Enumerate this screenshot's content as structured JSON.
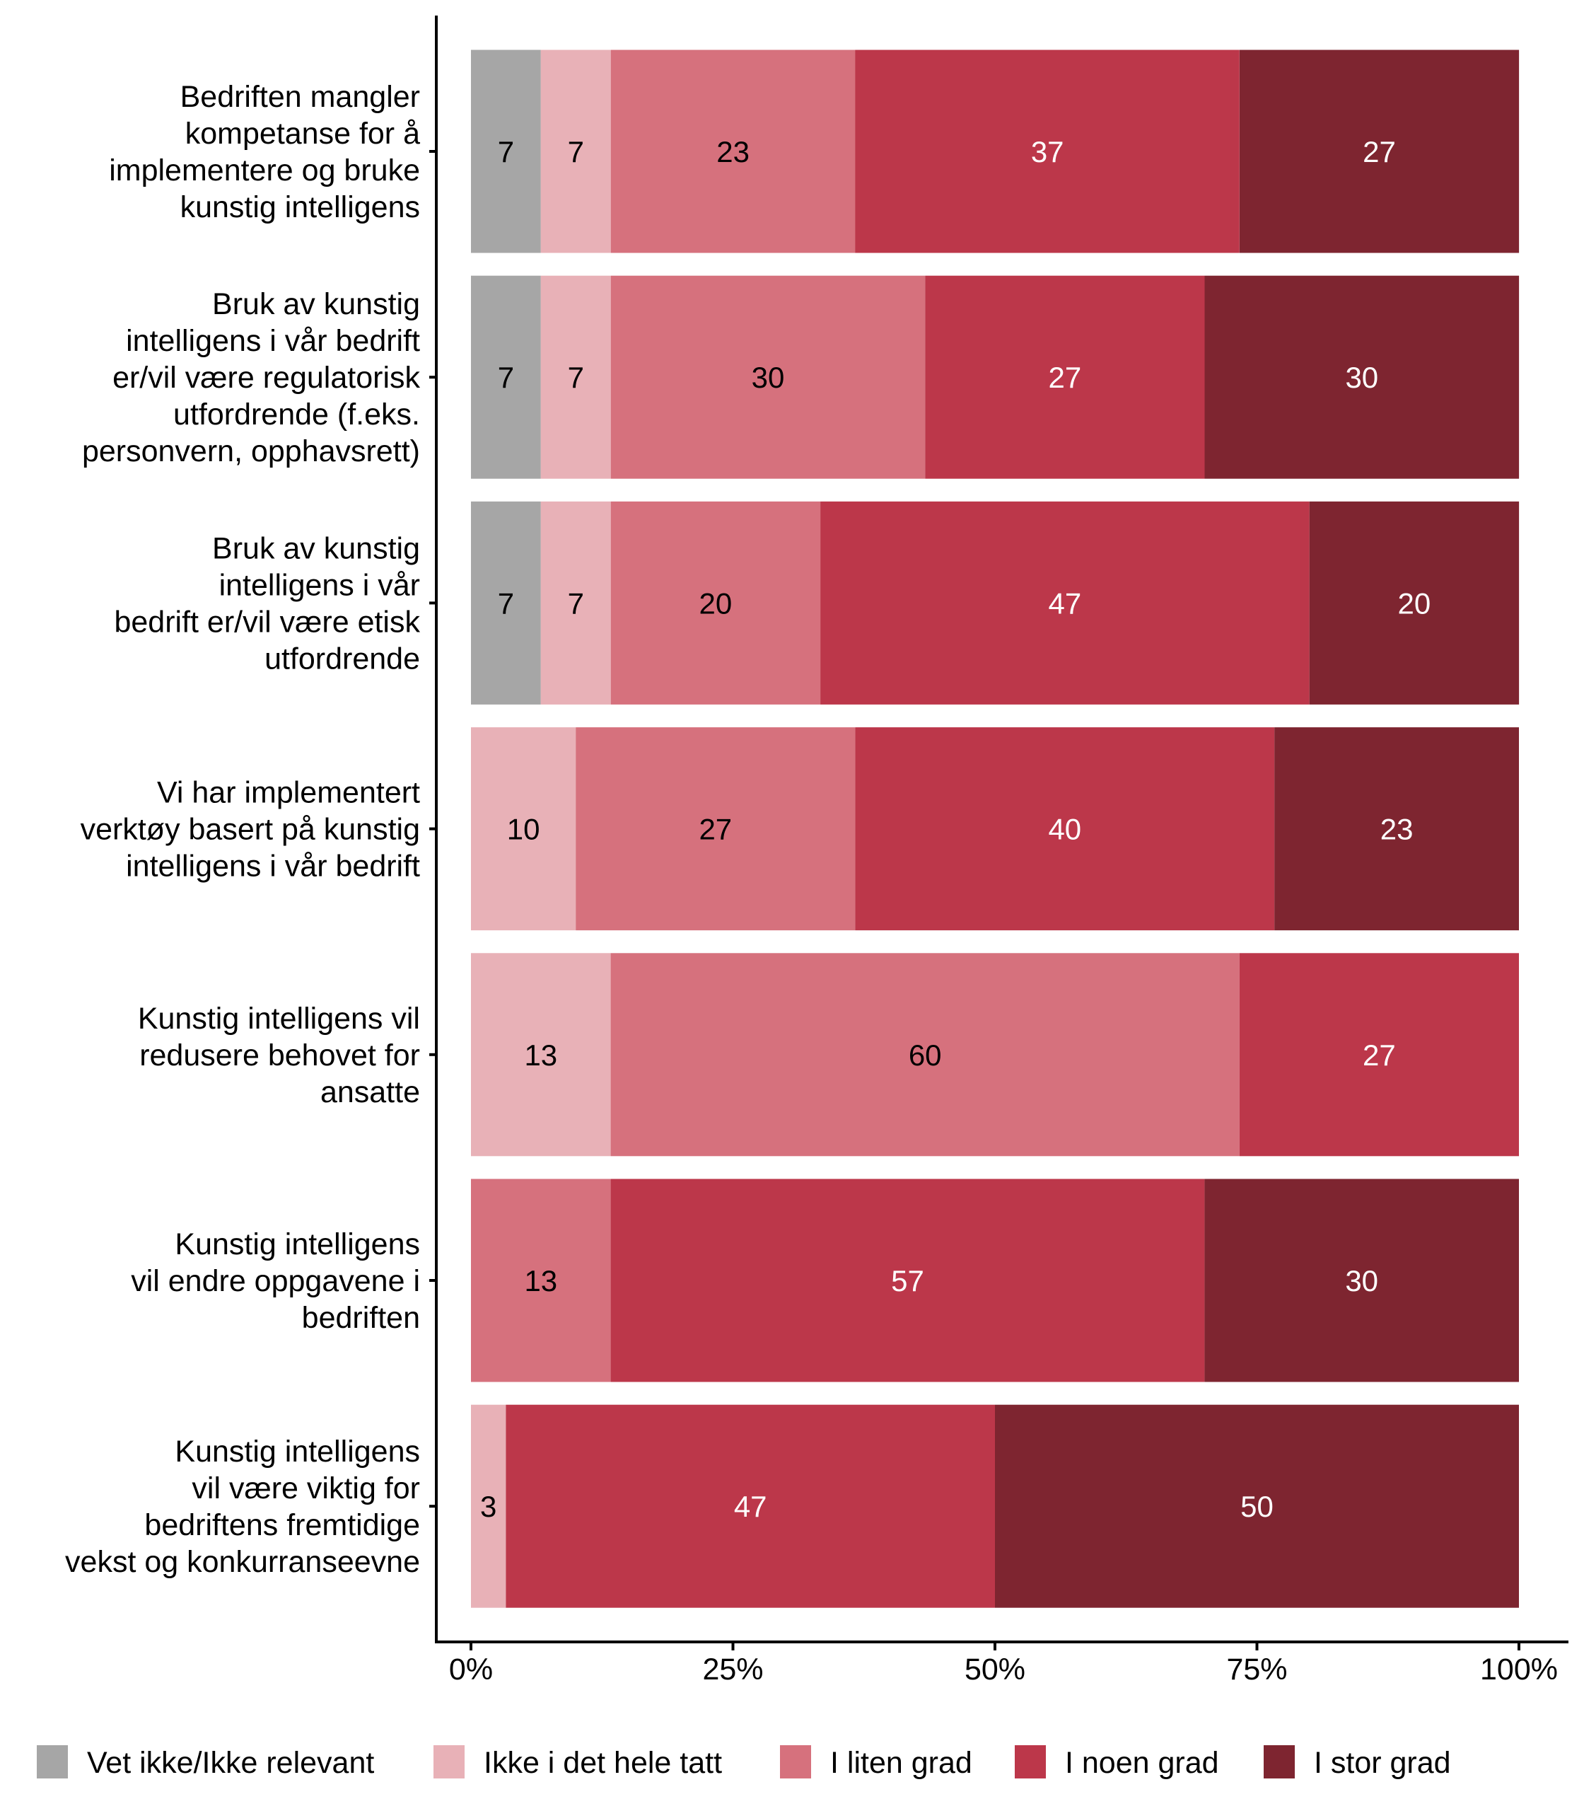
{
  "chart_data": {
    "type": "bar",
    "orientation": "horizontal",
    "stacked": true,
    "title": "",
    "xlabel": "",
    "ylabel": "",
    "xlim": [
      0,
      100
    ],
    "x_ticks": [
      0,
      25,
      50,
      75,
      100
    ],
    "x_tick_labels": [
      "0%",
      "25%",
      "50%",
      "75%",
      "100%"
    ],
    "grid": false,
    "legend_position": "bottom",
    "categories": [
      [
        "Bedriften mangler",
        "kompetanse for å",
        "implementere og bruke",
        "kunstig intelligens"
      ],
      [
        "Bruk av kunstig",
        "intelligens i vår bedrift",
        "er/vil være regulatorisk",
        "utfordrende (f.eks.",
        "personvern, opphavsrett)"
      ],
      [
        "Bruk av kunstig",
        "intelligens i vår",
        "bedrift er/vil være etisk",
        "utfordrende"
      ],
      [
        "Vi har implementert",
        "verktøy basert på kunstig",
        "intelligens i vår bedrift"
      ],
      [
        "Kunstig intelligens vil",
        "redusere behovet for",
        "ansatte"
      ],
      [
        "Kunstig intelligens",
        "vil endre oppgavene i",
        "bedriften"
      ],
      [
        "Kunstig intelligens",
        "vil være viktig for",
        "bedriftens fremtidige",
        "vekst og konkurranseevne"
      ]
    ],
    "series": [
      {
        "name": "Vet ikke/Ikke relevant",
        "color": "#A6A6A6",
        "label_color": "#000000",
        "values": [
          6.67,
          6.67,
          6.67,
          0,
          0,
          0,
          0
        ],
        "labels": [
          "7",
          "7",
          "7",
          "",
          "",
          "",
          ""
        ]
      },
      {
        "name": "Ikke i det hele tatt",
        "color": "#E8B1B7",
        "label_color": "#000000",
        "values": [
          6.67,
          6.67,
          6.67,
          10,
          13.33,
          0,
          3.33
        ],
        "labels": [
          "7",
          "7",
          "7",
          "10",
          "13",
          "",
          "3"
        ]
      },
      {
        "name": "I liten grad",
        "color": "#D6717D",
        "label_color": "#000000",
        "values": [
          23.33,
          30,
          20,
          26.67,
          60,
          13.33,
          0
        ],
        "labels": [
          "23",
          "30",
          "20",
          "27",
          "60",
          "13",
          ""
        ]
      },
      {
        "name": "I noen grad",
        "color": "#BC374A",
        "label_color": "#FFFFFF",
        "values": [
          36.67,
          26.67,
          46.67,
          40,
          26.67,
          56.67,
          46.67
        ],
        "labels": [
          "37",
          "27",
          "47",
          "40",
          "27",
          "57",
          "47"
        ]
      },
      {
        "name": "I stor grad",
        "color": "#7E2530",
        "label_color": "#FFFFFF",
        "values": [
          26.67,
          30,
          20,
          23.33,
          0,
          30,
          50
        ],
        "labels": [
          "27",
          "30",
          "20",
          "23",
          "",
          "30",
          "50"
        ]
      }
    ]
  }
}
